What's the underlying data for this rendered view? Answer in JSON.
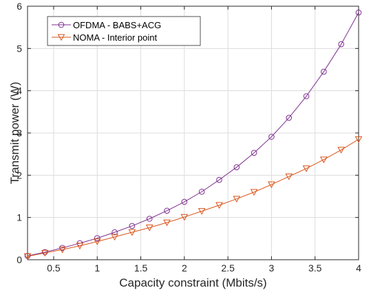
{
  "chart_data": {
    "type": "line",
    "xlabel": "Capacity constraint (Mbits/s)",
    "ylabel": "Transmit power (W)",
    "xlim": [
      0.2,
      4
    ],
    "ylim": [
      0,
      6
    ],
    "xticks": [
      "0.5",
      "1",
      "1.5",
      "2",
      "2.5",
      "3",
      "3.5",
      "4"
    ],
    "xtick_values": [
      0.5,
      1,
      1.5,
      2,
      2.5,
      3,
      3.5,
      4
    ],
    "yticks": [
      "0",
      "1",
      "2",
      "3",
      "4",
      "5",
      "6"
    ],
    "ytick_values": [
      0,
      1,
      2,
      3,
      4,
      5,
      6
    ],
    "grid": true,
    "legend_position": "top-left",
    "x": [
      0.2,
      0.4,
      0.6,
      0.8,
      1.0,
      1.2,
      1.4,
      1.6,
      1.8,
      2.0,
      2.2,
      2.4,
      2.6,
      2.8,
      3.0,
      3.2,
      3.4,
      3.6,
      3.8,
      4.0
    ],
    "series": [
      {
        "name": "OFDMA - BABS+ACG",
        "color": "#7E2F8E",
        "marker": "circle",
        "values": [
          0.09,
          0.18,
          0.28,
          0.39,
          0.51,
          0.65,
          0.8,
          0.97,
          1.16,
          1.37,
          1.61,
          1.89,
          2.19,
          2.53,
          2.91,
          3.36,
          3.87,
          4.45,
          5.1,
          5.85
        ]
      },
      {
        "name": "NOMA - Interior point",
        "color": "#D95319",
        "marker": "triangle-down",
        "values": [
          0.08,
          0.16,
          0.24,
          0.33,
          0.43,
          0.54,
          0.65,
          0.76,
          0.88,
          1.01,
          1.15,
          1.29,
          1.44,
          1.6,
          1.78,
          1.97,
          2.16,
          2.37,
          2.6,
          2.85
        ]
      }
    ]
  }
}
